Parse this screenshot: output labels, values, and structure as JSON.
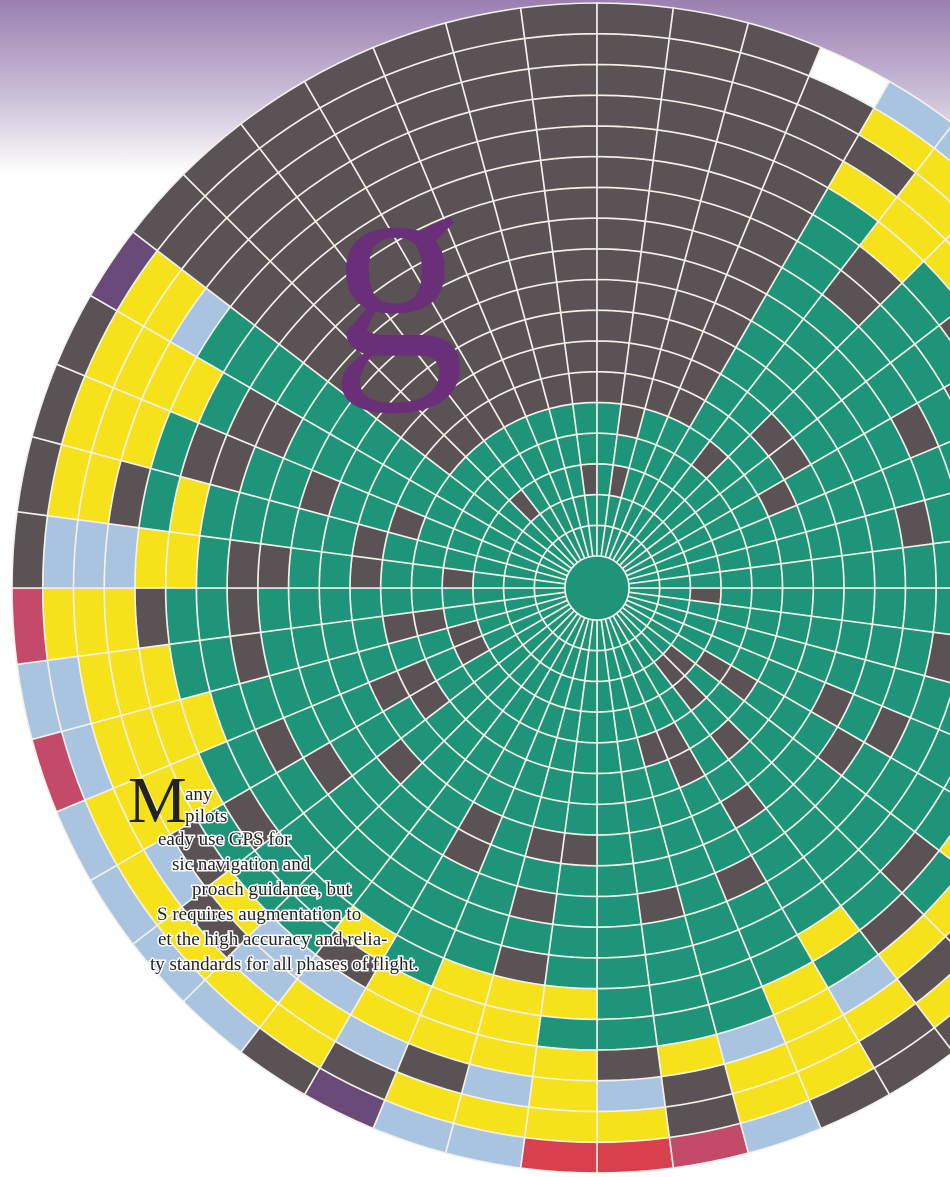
{
  "heading": {
    "letter": "g"
  },
  "article": {
    "drop_cap": "M",
    "lines": [
      "any",
      "pilots",
      "eady use GPS for",
      "sic navigation and",
      "proach guidance, but",
      "S requires augmentation to",
      "et the high accuracy and relia-",
      "ty standards for all phases of flight."
    ]
  }
}
